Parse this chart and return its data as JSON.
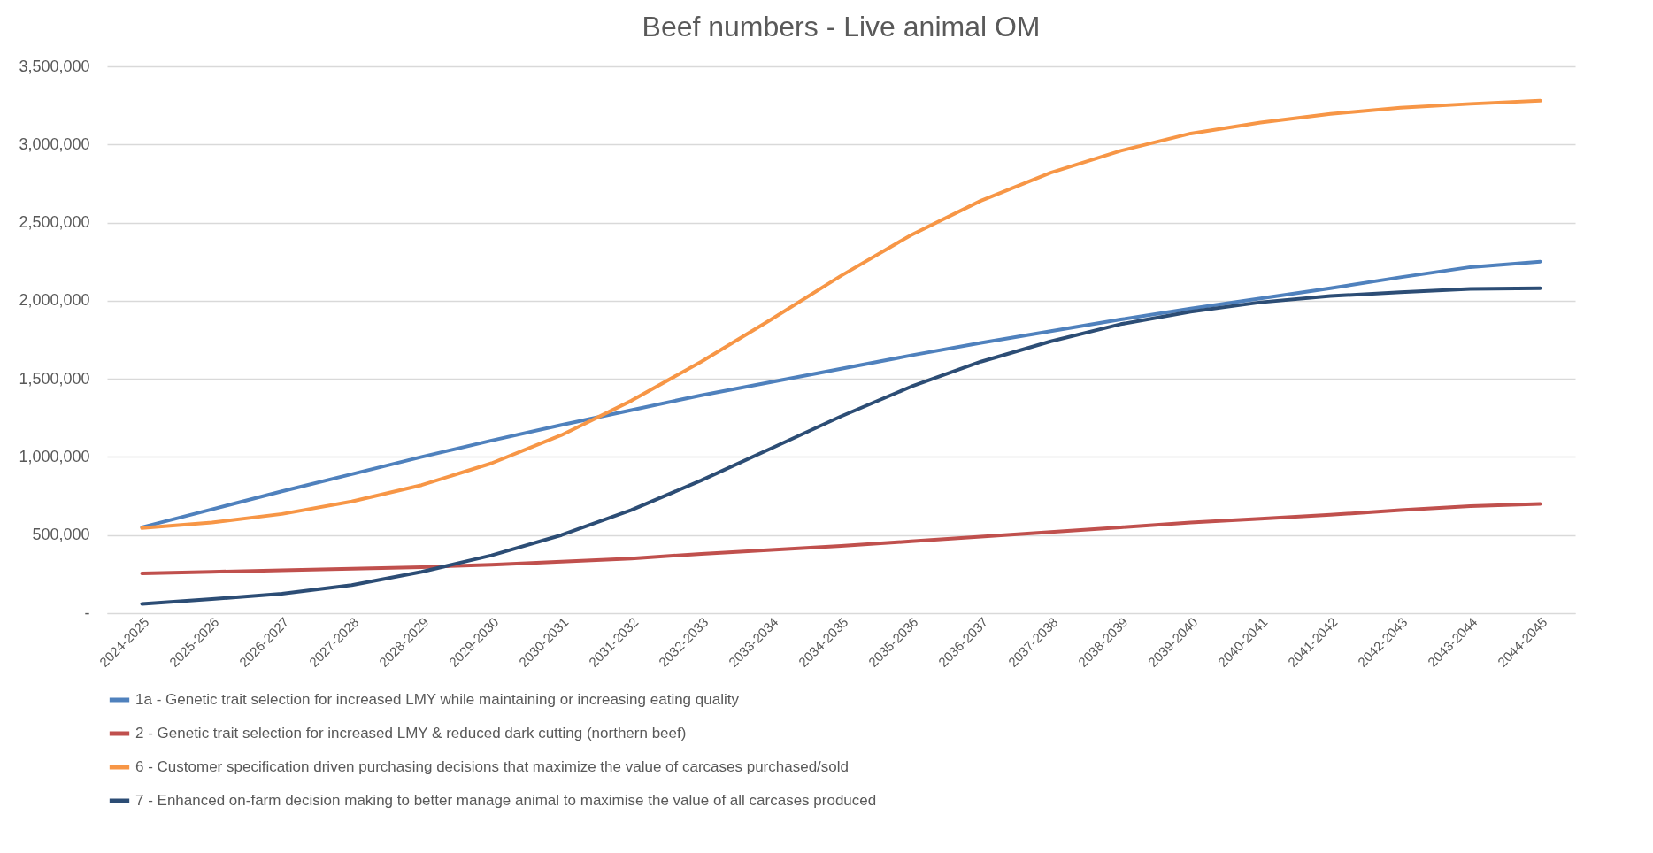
{
  "chart_data": {
    "type": "line",
    "title": "Beef numbers - Live animal OM",
    "categories": [
      "2024-2025",
      "2025-2026",
      "2026-2027",
      "2027-2028",
      "2028-2029",
      "2029-2030",
      "2030-2031",
      "2031-2032",
      "2032-2033",
      "2033-2034",
      "2034-2035",
      "2035-2036",
      "2036-2037",
      "2037-2038",
      "2038-2039",
      "2039-2040",
      "2040-2041",
      "2041-2042",
      "2042-2043",
      "2043-2044",
      "2044-2045"
    ],
    "series": [
      {
        "name": "1a - Genetic trait selection for increased LMY while maintaining or increasing eating quality",
        "color": "#4f81bd",
        "values": [
          550000,
          665000,
          780000,
          890000,
          1000000,
          1105000,
          1205000,
          1300000,
          1395000,
          1480000,
          1565000,
          1650000,
          1730000,
          1805000,
          1880000,
          1950000,
          2015000,
          2080000,
          2150000,
          2215000,
          2250000
        ]
      },
      {
        "name": "2 - Genetic trait selection for increased LMY & reduced dark cutting (northern beef)",
        "color": "#c0504d",
        "values": [
          255000,
          265000,
          275000,
          285000,
          295000,
          310000,
          330000,
          350000,
          380000,
          405000,
          430000,
          460000,
          490000,
          520000,
          550000,
          580000,
          605000,
          630000,
          660000,
          685000,
          700000
        ]
      },
      {
        "name": "6 - Customer specification driven purchasing decisions that maximize the value of carcases purchased/sold",
        "color": "#f79646",
        "values": [
          545000,
          580000,
          635000,
          715000,
          820000,
          960000,
          1140000,
          1360000,
          1610000,
          1880000,
          2160000,
          2420000,
          2640000,
          2820000,
          2960000,
          3070000,
          3140000,
          3195000,
          3235000,
          3260000,
          3280000
        ]
      },
      {
        "name": "7 - Enhanced on-farm decision making to better manage animal to maximise the value of all carcases produced",
        "color": "#2c4d75",
        "values": [
          60000,
          90000,
          125000,
          180000,
          265000,
          370000,
          500000,
          660000,
          850000,
          1055000,
          1260000,
          1450000,
          1610000,
          1740000,
          1850000,
          1930000,
          1990000,
          2030000,
          2055000,
          2075000,
          2080000
        ]
      }
    ],
    "ylim": [
      0,
      3500000
    ],
    "yticks": [
      {
        "value": 0,
        "label": "-"
      },
      {
        "value": 500000,
        "label": "500,000"
      },
      {
        "value": 1000000,
        "label": "1,000,000"
      },
      {
        "value": 1500000,
        "label": "1,500,000"
      },
      {
        "value": 2000000,
        "label": "2,000,000"
      },
      {
        "value": 2500000,
        "label": "2,500,000"
      },
      {
        "value": 3000000,
        "label": "3,000,000"
      },
      {
        "value": 3500000,
        "label": "3,500,000"
      }
    ],
    "grid": "y",
    "legend": "bottom",
    "marker": "none",
    "line_style": "solid"
  }
}
